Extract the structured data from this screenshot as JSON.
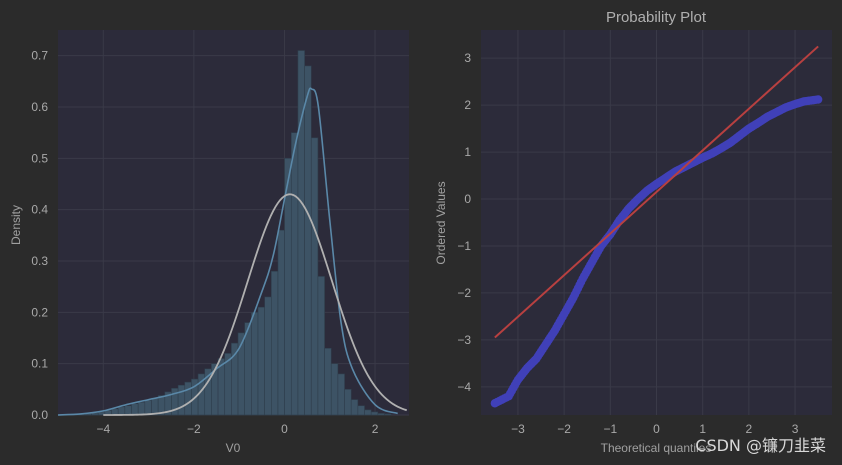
{
  "watermark": "CSDN @镰刀韭菜",
  "colors": {
    "figure_bg": "#2b2b2b",
    "axes_bg": "#2c2b3a",
    "grid": "#3a3a48",
    "hist_fill": "#3d5365",
    "hist_edge": "#2f3e4c",
    "kde": "#5a88a8",
    "normal_fit": "#b0b0b0",
    "qq_points": "#4040b8",
    "qq_line": "#b84040",
    "tick_text": "#a9a9a9"
  },
  "chart_data": [
    {
      "type": "histogram",
      "title": "",
      "xlabel": "V0",
      "ylabel": "Density",
      "xlim": [
        -5.0,
        2.75
      ],
      "ylim": [
        0,
        0.75
      ],
      "xticks": [
        -4,
        -2,
        0,
        2
      ],
      "yticks": [
        0.0,
        0.1,
        0.2,
        0.3,
        0.4,
        0.5,
        0.6,
        0.7
      ],
      "grid": true,
      "bins": {
        "start": -4.7,
        "width": 0.147,
        "values": [
          0.002,
          0.002,
          0.003,
          0.004,
          0.006,
          0.009,
          0.012,
          0.016,
          0.018,
          0.022,
          0.025,
          0.029,
          0.033,
          0.038,
          0.045,
          0.052,
          0.058,
          0.064,
          0.07,
          0.08,
          0.09,
          0.1,
          0.11,
          0.12,
          0.14,
          0.16,
          0.18,
          0.2,
          0.21,
          0.23,
          0.28,
          0.36,
          0.5,
          0.55,
          0.71,
          0.68,
          0.54,
          0.27,
          0.13,
          0.1,
          0.08,
          0.05,
          0.03,
          0.018,
          0.01,
          0.006,
          0.003,
          0.002
        ]
      },
      "kde": {
        "x": [
          -5.0,
          -4.5,
          -4.0,
          -3.5,
          -3.0,
          -2.5,
          -2.0,
          -1.5,
          -1.0,
          -0.5,
          -0.25,
          0.0,
          0.25,
          0.5,
          0.6,
          0.75,
          1.0,
          1.25,
          1.5,
          2.0,
          2.5
        ],
        "y": [
          0.0,
          0.002,
          0.008,
          0.02,
          0.03,
          0.04,
          0.055,
          0.09,
          0.13,
          0.24,
          0.31,
          0.42,
          0.53,
          0.62,
          0.635,
          0.6,
          0.38,
          0.18,
          0.09,
          0.02,
          0.003
        ]
      },
      "normal_fit": {
        "mean": 0.12,
        "std": 0.93,
        "peak": 0.43,
        "x_range": [
          -4.0,
          2.7
        ]
      }
    },
    {
      "type": "scatter",
      "title": "Probability Plot",
      "xlabel": "Theoretical quantiles",
      "ylabel": "Ordered Values",
      "xlim": [
        -3.8,
        3.8
      ],
      "ylim": [
        -4.6,
        3.6
      ],
      "xticks": [
        -3,
        -2,
        -1,
        0,
        1,
        2,
        3
      ],
      "yticks": [
        -4,
        -3,
        -2,
        -1,
        0,
        1,
        2,
        3
      ],
      "grid": true,
      "points": {
        "x": [
          -3.5,
          -3.2,
          -3.0,
          -2.8,
          -2.6,
          -2.4,
          -2.2,
          -2.0,
          -1.8,
          -1.6,
          -1.4,
          -1.2,
          -1.0,
          -0.8,
          -0.6,
          -0.4,
          -0.2,
          0.0,
          0.2,
          0.4,
          0.6,
          0.8,
          1.0,
          1.2,
          1.4,
          1.6,
          1.8,
          2.0,
          2.2,
          2.4,
          2.6,
          2.8,
          3.0,
          3.2,
          3.5
        ],
        "y": [
          -4.35,
          -4.2,
          -3.85,
          -3.6,
          -3.4,
          -3.1,
          -2.8,
          -2.45,
          -2.1,
          -1.7,
          -1.35,
          -1.0,
          -0.75,
          -0.45,
          -0.2,
          0.0,
          0.18,
          0.32,
          0.45,
          0.58,
          0.68,
          0.78,
          0.88,
          0.97,
          1.08,
          1.2,
          1.35,
          1.5,
          1.62,
          1.75,
          1.85,
          1.95,
          2.02,
          2.08,
          2.12
        ]
      },
      "fit_line": {
        "x": [
          -3.5,
          3.5
        ],
        "y": [
          -2.95,
          3.25
        ]
      }
    }
  ]
}
